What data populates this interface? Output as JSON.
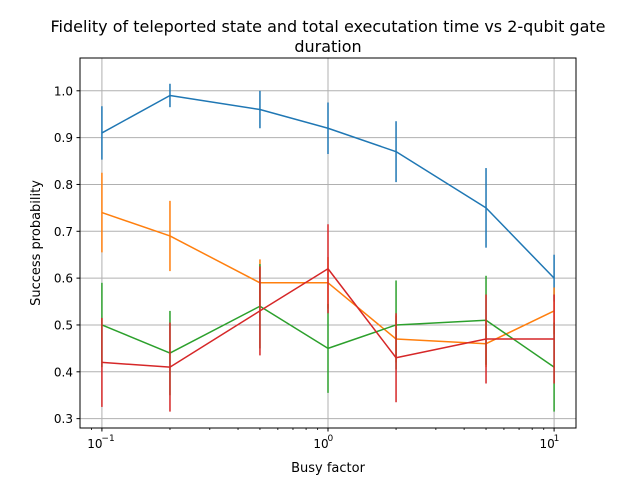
{
  "chart_data": {
    "type": "line",
    "title_lines": [
      "Fidelity of teleported state and total executation time vs 2-qubit gate",
      "duration"
    ],
    "xlabel": "Busy factor",
    "ylabel": "Success probability",
    "xscale": "log",
    "xlim": [
      0.08,
      12.5
    ],
    "ylim": [
      0.28,
      1.07
    ],
    "grid": true,
    "x": [
      0.1,
      0.2,
      0.5,
      1,
      2,
      5,
      10
    ],
    "x_ticks": [
      {
        "value": 0.1,
        "base": "10",
        "exp": "−1"
      },
      {
        "value": 1,
        "base": "10",
        "exp": "0"
      },
      {
        "value": 10,
        "base": "10",
        "exp": "1"
      }
    ],
    "y_ticks": [
      {
        "value": 0.3,
        "label": "0.3"
      },
      {
        "value": 0.4,
        "label": "0.4"
      },
      {
        "value": 0.5,
        "label": "0.5"
      },
      {
        "value": 0.6,
        "label": "0.6"
      },
      {
        "value": 0.7,
        "label": "0.7"
      },
      {
        "value": 0.8,
        "label": "0.8"
      },
      {
        "value": 0.9,
        "label": "0.9"
      },
      {
        "value": 1.0,
        "label": "1.0"
      }
    ],
    "series": [
      {
        "color": "#1f77b4",
        "values": [
          0.91,
          0.99,
          0.96,
          0.92,
          0.87,
          0.75,
          0.6
        ],
        "errors": [
          0.057,
          0.025,
          0.04,
          0.055,
          0.065,
          0.085,
          0.05
        ]
      },
      {
        "color": "#ff7f0e",
        "values": [
          0.74,
          0.69,
          0.59,
          0.59,
          0.47,
          0.46,
          0.53
        ],
        "errors": [
          0.085,
          0.075,
          0.05,
          0.055,
          0.05,
          0.05,
          0.05
        ]
      },
      {
        "color": "#2ca02c",
        "values": [
          0.5,
          0.44,
          0.54,
          0.45,
          0.5,
          0.51,
          0.41
        ],
        "errors": [
          0.09,
          0.09,
          0.09,
          0.095,
          0.095,
          0.095,
          0.095
        ]
      },
      {
        "color": "#d62728",
        "values": [
          0.42,
          0.41,
          0.53,
          0.62,
          0.43,
          0.47,
          0.47
        ],
        "errors": [
          0.095,
          0.095,
          0.095,
          0.095,
          0.095,
          0.095,
          0.095
        ]
      }
    ]
  }
}
